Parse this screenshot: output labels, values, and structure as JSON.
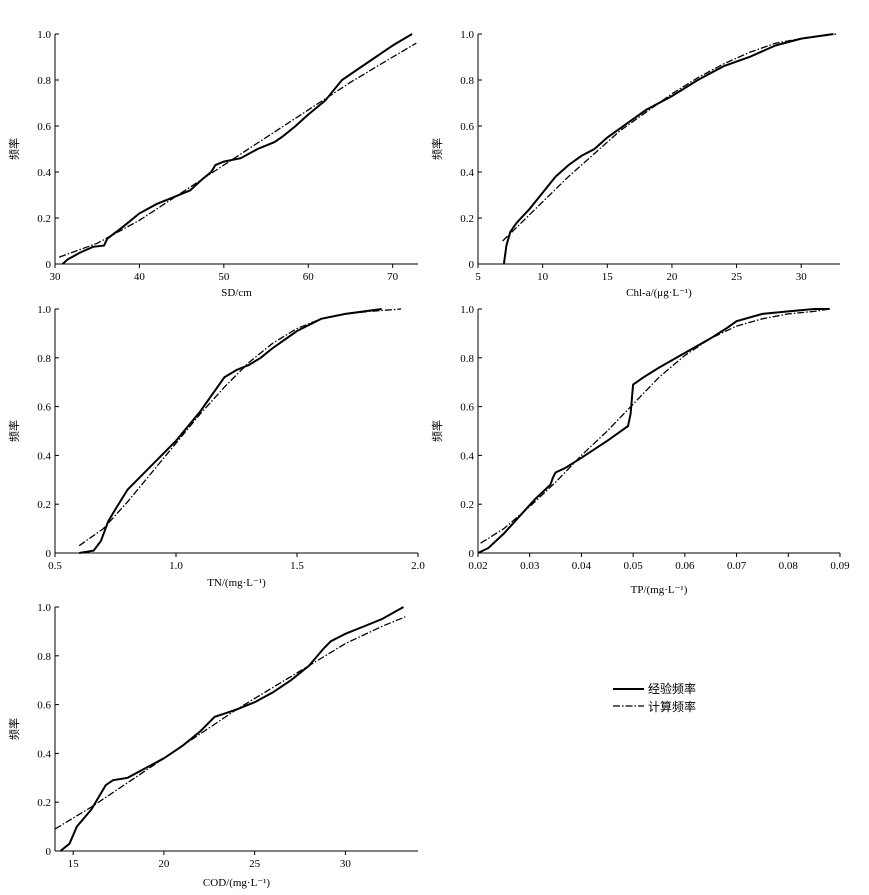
{
  "chart_data": [
    {
      "type": "line",
      "xlabel": "SD/cm",
      "ylabel": "频率",
      "xlim": [
        30,
        73
      ],
      "ylim": [
        0,
        1
      ],
      "xticks": [
        30,
        40,
        50,
        60,
        70
      ],
      "yticks": [
        "0",
        "0.2",
        "0.4",
        "0.6",
        "0.8",
        "1.0"
      ],
      "series": [
        {
          "name": "经验频率",
          "style": "solid",
          "x": [
            30.9,
            31.5,
            33,
            34.5,
            35.8,
            36.2,
            38,
            40,
            42,
            44,
            46,
            47.5,
            48.5,
            49,
            50,
            52,
            54,
            56,
            57,
            58.5,
            60,
            62,
            64,
            66,
            68,
            70,
            72.3
          ],
          "y": [
            0,
            0.02,
            0.05,
            0.075,
            0.08,
            0.11,
            0.16,
            0.22,
            0.26,
            0.29,
            0.32,
            0.37,
            0.4,
            0.43,
            0.445,
            0.46,
            0.5,
            0.53,
            0.555,
            0.6,
            0.65,
            0.71,
            0.8,
            0.85,
            0.9,
            0.95,
            1.0
          ]
        },
        {
          "name": "计算频率",
          "style": "dashdot",
          "x": [
            30.5,
            35,
            40,
            45,
            50,
            55,
            60,
            65,
            70,
            72.8
          ],
          "y": [
            0.03,
            0.09,
            0.19,
            0.31,
            0.43,
            0.55,
            0.67,
            0.79,
            0.9,
            0.96
          ]
        }
      ]
    },
    {
      "type": "line",
      "xlabel": "Chl-a/(μg·L⁻¹)",
      "ylabel": "频率",
      "xlim": [
        5,
        33
      ],
      "ylim": [
        0,
        1
      ],
      "xticks": [
        5,
        10,
        15,
        20,
        25,
        30
      ],
      "yticks": [
        "0",
        "0.2",
        "0.4",
        "0.6",
        "0.8",
        "1.0"
      ],
      "series": [
        {
          "name": "经验频率",
          "style": "solid",
          "x": [
            7.0,
            7.2,
            7.5,
            8,
            9,
            10,
            11,
            12,
            13,
            14,
            15,
            16,
            17,
            18,
            19,
            20,
            22,
            24,
            26,
            28,
            30,
            32.5
          ],
          "y": [
            0,
            0.08,
            0.14,
            0.18,
            0.24,
            0.31,
            0.38,
            0.43,
            0.47,
            0.5,
            0.55,
            0.59,
            0.63,
            0.67,
            0.7,
            0.73,
            0.8,
            0.86,
            0.9,
            0.95,
            0.98,
            1.0
          ]
        },
        {
          "name": "计算频率",
          "style": "dashdot",
          "x": [
            6.9,
            8,
            10,
            12,
            14,
            16,
            18,
            20,
            22,
            24,
            26,
            28,
            30,
            32.7
          ],
          "y": [
            0.1,
            0.16,
            0.27,
            0.38,
            0.48,
            0.58,
            0.66,
            0.74,
            0.81,
            0.87,
            0.92,
            0.96,
            0.98,
            1.0
          ]
        }
      ]
    },
    {
      "type": "line",
      "xlabel": "TN/(mg·L⁻¹)",
      "ylabel": "频率",
      "xlim": [
        0.5,
        2.0
      ],
      "ylim": [
        0,
        1
      ],
      "xticks": [
        "0.5",
        "1.0",
        "1.5",
        "2.0"
      ],
      "yticks": [
        "0",
        "0.2",
        "0.4",
        "0.6",
        "0.8",
        "1.0"
      ],
      "series": [
        {
          "name": "经验频率",
          "style": "solid",
          "x": [
            0.6,
            0.66,
            0.69,
            0.72,
            0.75,
            0.8,
            0.85,
            0.9,
            1.0,
            1.1,
            1.2,
            1.25,
            1.3,
            1.35,
            1.4,
            1.5,
            1.6,
            1.7,
            1.85
          ],
          "y": [
            0,
            0.01,
            0.05,
            0.13,
            0.18,
            0.26,
            0.31,
            0.36,
            0.46,
            0.58,
            0.72,
            0.75,
            0.77,
            0.8,
            0.84,
            0.91,
            0.96,
            0.98,
            1.0
          ]
        },
        {
          "name": "计算频率",
          "style": "dashdot",
          "x": [
            0.6,
            0.7,
            0.8,
            0.9,
            1.0,
            1.1,
            1.2,
            1.3,
            1.4,
            1.5,
            1.6,
            1.7,
            1.8,
            1.93
          ],
          "y": [
            0.03,
            0.1,
            0.21,
            0.33,
            0.45,
            0.57,
            0.68,
            0.78,
            0.86,
            0.92,
            0.96,
            0.98,
            0.99,
            1.0
          ]
        }
      ]
    },
    {
      "type": "line",
      "xlabel": "TP/(mg·L⁻¹)",
      "ylabel": "频率",
      "xlim": [
        0.02,
        0.09
      ],
      "ylim": [
        0,
        1
      ],
      "xticks": [
        "0.02",
        "0.03",
        "0.04",
        "0.05",
        "0.06",
        "0.07",
        "0.08",
        "0.09"
      ],
      "yticks": [
        "0",
        "0.2",
        "0.4",
        "0.6",
        "0.8",
        "1.0"
      ],
      "series": [
        {
          "name": "经验频率",
          "style": "solid",
          "x": [
            0.02,
            0.022,
            0.025,
            0.028,
            0.031,
            0.034,
            0.0345,
            0.035,
            0.037,
            0.04,
            0.045,
            0.049,
            0.0495,
            0.05,
            0.052,
            0.055,
            0.06,
            0.065,
            0.068,
            0.07,
            0.075,
            0.08,
            0.085,
            0.088
          ],
          "y": [
            0,
            0.02,
            0.08,
            0.15,
            0.22,
            0.28,
            0.31,
            0.33,
            0.35,
            0.39,
            0.46,
            0.52,
            0.57,
            0.69,
            0.72,
            0.76,
            0.82,
            0.88,
            0.92,
            0.95,
            0.98,
            0.99,
            1.0,
            1.0
          ]
        },
        {
          "name": "计算频率",
          "style": "dashdot",
          "x": [
            0.0205,
            0.025,
            0.03,
            0.035,
            0.04,
            0.045,
            0.05,
            0.055,
            0.06,
            0.065,
            0.07,
            0.075,
            0.08,
            0.085,
            0.088
          ],
          "y": [
            0.04,
            0.1,
            0.19,
            0.29,
            0.4,
            0.5,
            0.61,
            0.72,
            0.81,
            0.88,
            0.93,
            0.96,
            0.98,
            0.99,
            1.0
          ]
        }
      ]
    },
    {
      "type": "line",
      "xlabel": "COD/(mg·L⁻¹)",
      "ylabel": "频率",
      "xlim": [
        14,
        34
      ],
      "ylim": [
        0,
        1
      ],
      "xticks": [
        15,
        20,
        25,
        30
      ],
      "yticks": [
        "0",
        "0.2",
        "0.4",
        "0.6",
        "0.8",
        "1.0"
      ],
      "series": [
        {
          "name": "经验频率",
          "style": "solid",
          "x": [
            14.3,
            14.8,
            15.2,
            16,
            16.8,
            17.2,
            18,
            19,
            20,
            21,
            22,
            22.8,
            23.2,
            24,
            25,
            26,
            27,
            28,
            28.8,
            29.2,
            30,
            31,
            32,
            33.2
          ],
          "y": [
            0,
            0.03,
            0.1,
            0.17,
            0.27,
            0.29,
            0.3,
            0.34,
            0.38,
            0.43,
            0.49,
            0.55,
            0.56,
            0.58,
            0.61,
            0.65,
            0.7,
            0.76,
            0.83,
            0.86,
            0.89,
            0.92,
            0.95,
            1.0
          ]
        },
        {
          "name": "计算频率",
          "style": "dashdot",
          "x": [
            14,
            16,
            18,
            20,
            22,
            24,
            26,
            28,
            30,
            32,
            33.3
          ],
          "y": [
            0.09,
            0.18,
            0.28,
            0.38,
            0.48,
            0.58,
            0.67,
            0.76,
            0.85,
            0.92,
            0.96
          ]
        }
      ]
    }
  ],
  "legend": [
    {
      "label": "经验频率",
      "style": "solid"
    },
    {
      "label": "计算频率",
      "style": "dashdot"
    }
  ]
}
